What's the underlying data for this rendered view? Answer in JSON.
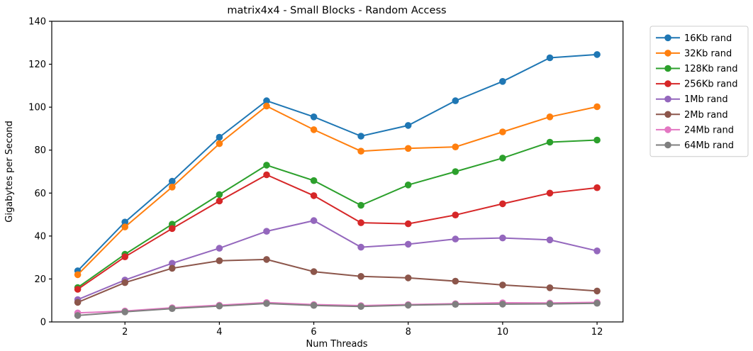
{
  "figure": {
    "background": "#ffffff",
    "axis_color": "#000000",
    "legend_border_color": "#cccccc"
  },
  "chart_data": {
    "type": "line",
    "title": "matrix4x4 - Small Blocks - Random Access",
    "xlabel": "Num Threads",
    "ylabel": "Gigabytes per Second",
    "x": [
      1,
      2,
      3,
      4,
      5,
      6,
      7,
      8,
      9,
      10,
      11,
      12
    ],
    "xticks": [
      2,
      4,
      6,
      8,
      10,
      12
    ],
    "yticks": [
      0,
      20,
      40,
      60,
      80,
      100,
      120,
      140
    ],
    "ylim": [
      0,
      140
    ],
    "xlim": [
      0.45,
      12.55
    ],
    "grid": false,
    "legend_position": "outside-right-top",
    "marker": "circle",
    "series": [
      {
        "name": "16Kb rand",
        "color": "#1f77b4",
        "values": [
          23.8,
          46.5,
          65.5,
          86.0,
          103.0,
          95.5,
          86.5,
          91.5,
          103.0,
          112.0,
          123.0,
          124.5
        ]
      },
      {
        "name": "32Kb rand",
        "color": "#ff7f0e",
        "values": [
          22.0,
          44.2,
          62.8,
          83.0,
          100.5,
          89.5,
          79.5,
          80.8,
          81.5,
          88.5,
          95.5,
          100.2
        ]
      },
      {
        "name": "128Kb rand",
        "color": "#2ca02c",
        "values": [
          16.0,
          31.5,
          45.5,
          59.3,
          73.0,
          65.8,
          54.3,
          63.8,
          70.0,
          76.3,
          83.7,
          84.7
        ]
      },
      {
        "name": "256Kb rand",
        "color": "#d62728",
        "values": [
          15.2,
          30.3,
          43.5,
          56.3,
          68.5,
          58.8,
          46.2,
          45.7,
          49.8,
          55.0,
          60.0,
          62.5
        ]
      },
      {
        "name": "1Mb rand",
        "color": "#9467bd",
        "values": [
          10.4,
          19.5,
          27.3,
          34.3,
          42.2,
          47.2,
          34.8,
          36.2,
          38.6,
          39.1,
          38.2,
          33.1
        ]
      },
      {
        "name": "2Mb rand",
        "color": "#8c564b",
        "values": [
          9.1,
          18.3,
          25.0,
          28.5,
          29.1,
          23.4,
          21.2,
          20.5,
          19.0,
          17.2,
          15.9,
          14.4
        ]
      },
      {
        "name": "24Mb rand",
        "color": "#e377c2",
        "values": [
          4.2,
          5.1,
          6.6,
          7.8,
          9.0,
          8.1,
          7.6,
          8.1,
          8.5,
          8.9,
          8.8,
          9.1
        ]
      },
      {
        "name": "64Mb rand",
        "color": "#7f7f7f",
        "values": [
          3.0,
          4.7,
          6.2,
          7.4,
          8.6,
          7.7,
          7.2,
          7.8,
          8.2,
          8.3,
          8.4,
          8.7
        ]
      }
    ]
  }
}
